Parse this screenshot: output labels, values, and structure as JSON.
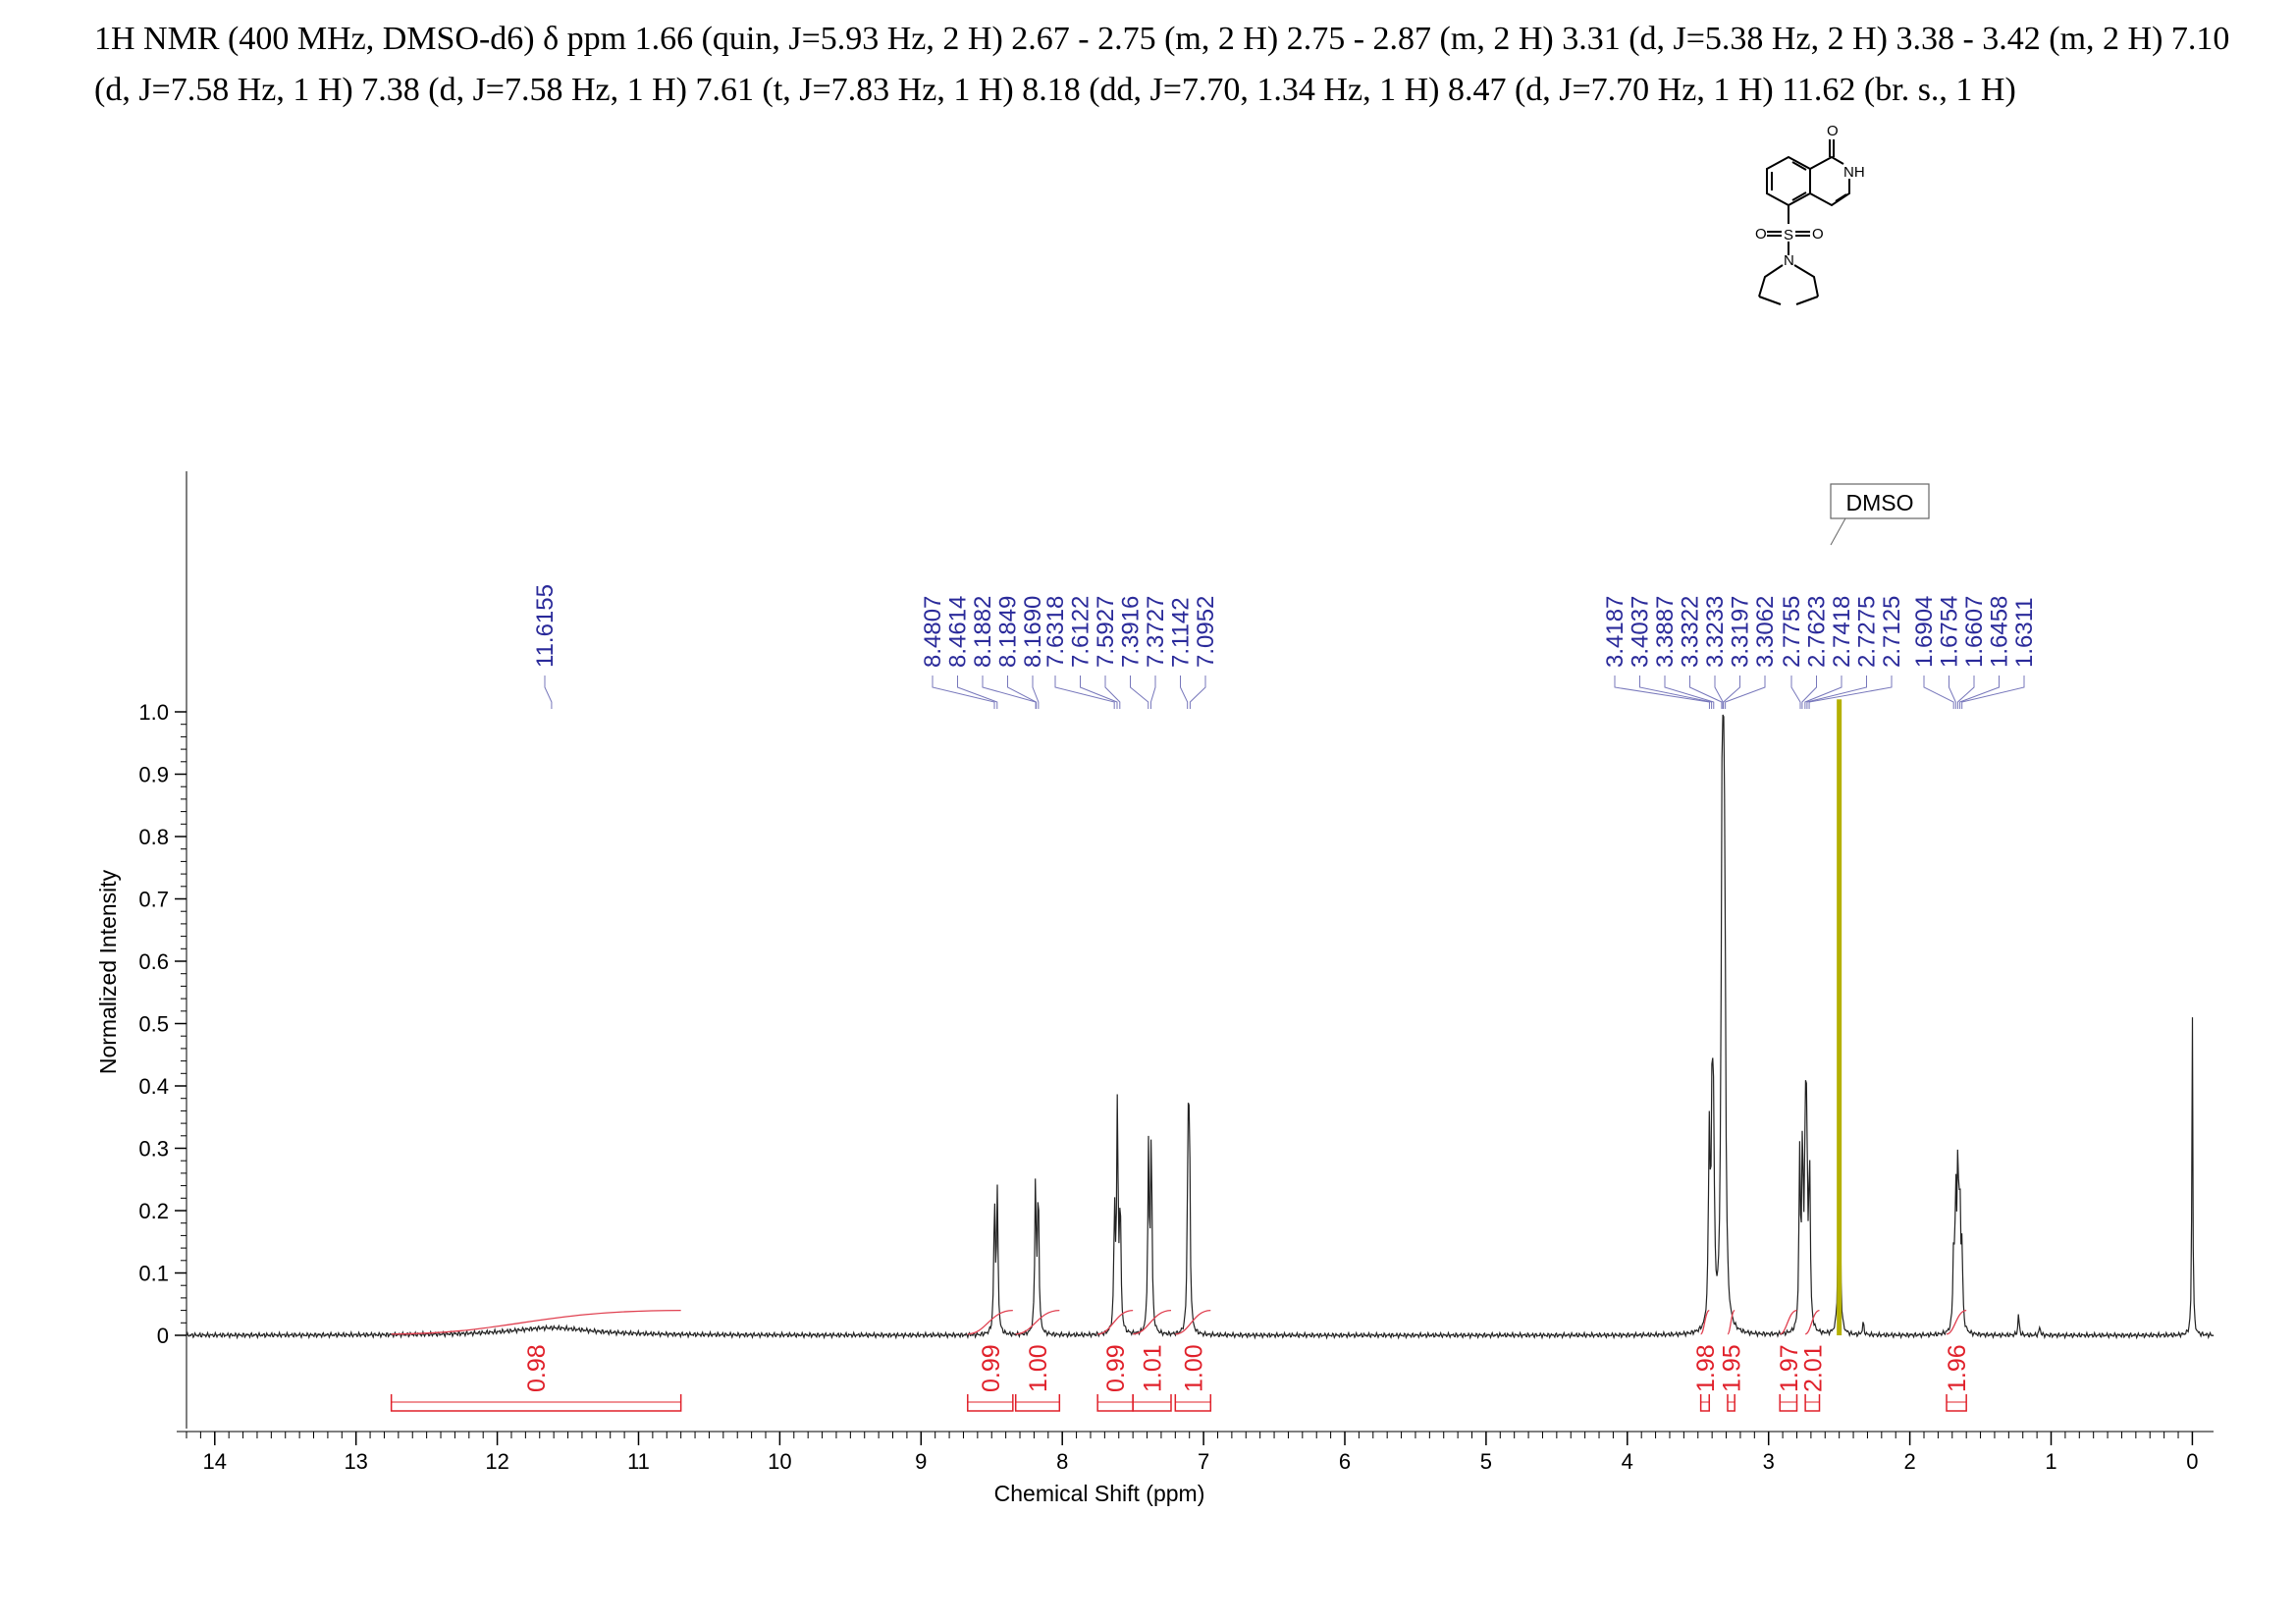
{
  "header": {
    "line1": "1H NMR (400 MHz, DMSO-d6) δ ppm 1.66 (quin, J=5.93 Hz, 2 H) 2.67 - 2.75 (m, 2 H) 2.75 - 2.87 (m, 2 H) 3.31 (d,  J=5.38 Hz, 2 H) 3.38 - 3.42 (m, 2 H) 7.10",
    "line2": "(d, J=7.58 Hz, 1 H) 7.38 (d, J=7.58 Hz, 1 H) 7.61 (t, J=7.83 Hz, 1 H) 8.18 (dd, J=7.70, 1.34 Hz, 1 H) 8.47 (d, J=7.70 Hz, 1 H) 11.62 (br. s., 1 H)"
  },
  "molecule": {
    "atoms": {
      "O": "O",
      "NH": "NH",
      "S": "S",
      "N": "N",
      "NH_bottom": "N",
      "H": "H"
    }
  },
  "chart_data": {
    "type": "line",
    "xlabel": "Chemical Shift (ppm)",
    "ylabel": "Normalized Intensity",
    "xlim": [
      14.2,
      -0.15
    ],
    "ylim": [
      0,
      1.0
    ],
    "x_ticks": [
      "14",
      "13",
      "12",
      "11",
      "10",
      "9",
      "8",
      "7",
      "6",
      "5",
      "4",
      "3",
      "2",
      "1",
      "0"
    ],
    "y_ticks": [
      "0",
      "0.1",
      "0.2",
      "0.3",
      "0.4",
      "0.5",
      "0.6",
      "0.7",
      "0.8",
      "0.9",
      "1.0"
    ],
    "peak_labels": [
      "11.6155",
      "8.4807",
      "8.4614",
      "8.1882",
      "8.1849",
      "8.1690",
      "7.6318",
      "7.6122",
      "7.5927",
      "7.3916",
      "7.3727",
      "7.1142",
      "7.0952",
      "3.4187",
      "3.4037",
      "3.3887",
      "3.3322",
      "3.3233",
      "3.3197",
      "3.3062",
      "2.7755",
      "2.7623",
      "2.7418",
      "2.7275",
      "2.7125",
      "1.6904",
      "1.6754",
      "1.6607",
      "1.6458",
      "1.6311"
    ],
    "solvent_annotation": "DMSO",
    "solvent_shift": 2.5,
    "peaks": [
      {
        "x": 11.62,
        "y": 0.012,
        "w": 0.35
      },
      {
        "x": 8.48,
        "y": 0.21,
        "w": 0.006
      },
      {
        "x": 8.46,
        "y": 0.22,
        "w": 0.006
      },
      {
        "x": 8.19,
        "y": 0.24,
        "w": 0.006
      },
      {
        "x": 8.17,
        "y": 0.23,
        "w": 0.006
      },
      {
        "x": 7.63,
        "y": 0.19,
        "w": 0.006
      },
      {
        "x": 7.61,
        "y": 0.36,
        "w": 0.006
      },
      {
        "x": 7.59,
        "y": 0.2,
        "w": 0.006
      },
      {
        "x": 7.39,
        "y": 0.29,
        "w": 0.006
      },
      {
        "x": 7.37,
        "y": 0.31,
        "w": 0.006
      },
      {
        "x": 7.11,
        "y": 0.29,
        "w": 0.006
      },
      {
        "x": 7.1,
        "y": 0.3,
        "w": 0.006
      },
      {
        "x": 3.42,
        "y": 0.3,
        "w": 0.007
      },
      {
        "x": 3.4,
        "y": 0.32,
        "w": 0.007
      },
      {
        "x": 3.39,
        "y": 0.28,
        "w": 0.007
      },
      {
        "x": 3.33,
        "y": 0.62,
        "w": 0.008
      },
      {
        "x": 3.32,
        "y": 0.58,
        "w": 0.008
      },
      {
        "x": 3.31,
        "y": 0.5,
        "w": 0.008
      },
      {
        "x": 2.78,
        "y": 0.27,
        "w": 0.006
      },
      {
        "x": 2.76,
        "y": 0.29,
        "w": 0.006
      },
      {
        "x": 2.74,
        "y": 0.3,
        "w": 0.006
      },
      {
        "x": 2.73,
        "y": 0.29,
        "w": 0.006
      },
      {
        "x": 2.71,
        "y": 0.27,
        "w": 0.006
      },
      {
        "x": 2.5,
        "y": 1.0,
        "w": 0.004
      },
      {
        "x": 2.33,
        "y": 0.02,
        "w": 0.006
      },
      {
        "x": 1.69,
        "y": 0.12,
        "w": 0.006
      },
      {
        "x": 1.675,
        "y": 0.2,
        "w": 0.006
      },
      {
        "x": 1.66,
        "y": 0.25,
        "w": 0.006
      },
      {
        "x": 1.646,
        "y": 0.2,
        "w": 0.006
      },
      {
        "x": 1.631,
        "y": 0.12,
        "w": 0.006
      },
      {
        "x": 1.23,
        "y": 0.035,
        "w": 0.005
      },
      {
        "x": 1.08,
        "y": 0.015,
        "w": 0.005
      },
      {
        "x": 0.0,
        "y": 0.52,
        "w": 0.004
      }
    ],
    "integrals": [
      {
        "from": 12.75,
        "to": 10.7,
        "value": "0.98"
      },
      {
        "from": 8.67,
        "to": 8.35,
        "value": "0.99"
      },
      {
        "from": 8.33,
        "to": 8.02,
        "value": "1.00"
      },
      {
        "from": 7.75,
        "to": 7.5,
        "value": "0.99"
      },
      {
        "from": 7.5,
        "to": 7.23,
        "value": "1.01"
      },
      {
        "from": 7.2,
        "to": 6.95,
        "value": "1.00"
      },
      {
        "from": 3.48,
        "to": 3.42,
        "value": "1.98"
      },
      {
        "from": 3.29,
        "to": 3.24,
        "value": "1.95"
      },
      {
        "from": 2.92,
        "to": 2.8,
        "value": "1.97"
      },
      {
        "from": 2.74,
        "to": 2.64,
        "value": "2.01"
      },
      {
        "from": 1.74,
        "to": 1.6,
        "value": "1.96"
      }
    ]
  }
}
